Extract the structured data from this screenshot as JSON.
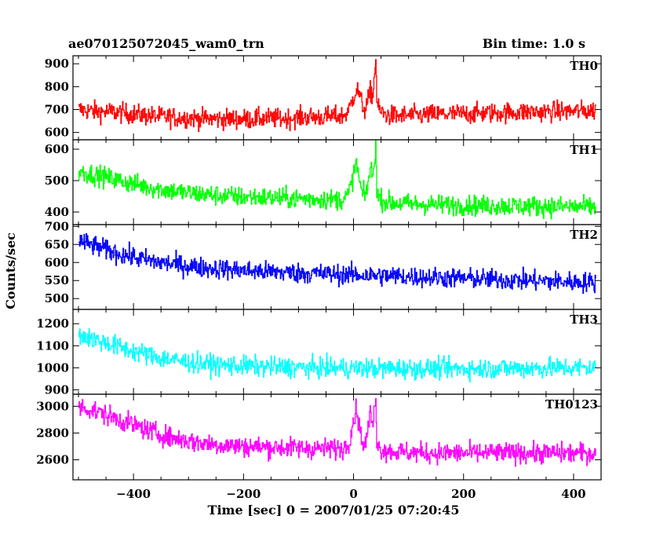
{
  "header": {
    "title": "ae070125072045_wam0_trn",
    "bin_time": "Bin time: 1.0 s"
  },
  "chart_data": {
    "type": "line",
    "xlabel": "Time [sec] 0 = 2007/01/25 07:20:45",
    "ylabel": "Counts/sec",
    "xlim": [
      -510,
      450
    ],
    "x_ticks": [
      -400,
      -200,
      0,
      200,
      400
    ],
    "grid": false,
    "panels": [
      {
        "name": "TH0",
        "color": "#ff0000",
        "ylim": [
          568,
          935
        ],
        "y_ticks": [
          600,
          700,
          800,
          900
        ],
        "x": [
          -500,
          -480,
          -460,
          -440,
          -420,
          -400,
          -380,
          -360,
          -340,
          -320,
          -300,
          -280,
          -260,
          -240,
          -220,
          -200,
          -180,
          -160,
          -140,
          -120,
          -100,
          -80,
          -60,
          -40,
          -20,
          -10,
          0,
          5,
          10,
          15,
          20,
          25,
          30,
          35,
          40,
          42,
          45,
          50,
          60,
          80,
          100,
          120,
          140,
          160,
          180,
          200,
          220,
          240,
          260,
          280,
          300,
          320,
          340,
          360,
          380,
          400,
          420,
          440
        ],
        "values": [
          700,
          695,
          690,
          690,
          685,
          680,
          675,
          670,
          668,
          665,
          665,
          660,
          660,
          658,
          660,
          658,
          660,
          662,
          660,
          662,
          665,
          668,
          668,
          670,
          672,
          690,
          760,
          790,
          770,
          720,
          700,
          730,
          780,
          760,
          935,
          740,
          700,
          690,
          675,
          672,
          675,
          675,
          678,
          680,
          680,
          682,
          682,
          685,
          685,
          688,
          688,
          690,
          690,
          692,
          692,
          693,
          694,
          695
        ]
      },
      {
        "name": "TH1",
        "color": "#00ff00",
        "ylim": [
          360,
          630
        ],
        "y_ticks": [
          400,
          500,
          600
        ],
        "x": [
          -500,
          -480,
          -460,
          -440,
          -420,
          -400,
          -380,
          -360,
          -340,
          -320,
          -300,
          -280,
          -260,
          -240,
          -220,
          -200,
          -180,
          -160,
          -140,
          -120,
          -100,
          -80,
          -60,
          -40,
          -20,
          -10,
          0,
          5,
          10,
          15,
          20,
          25,
          30,
          35,
          40,
          42,
          45,
          50,
          60,
          80,
          100,
          120,
          140,
          160,
          180,
          200,
          220,
          240,
          260,
          280,
          300,
          320,
          340,
          360,
          380,
          400,
          420,
          440
        ],
        "values": [
          530,
          522,
          515,
          505,
          498,
          490,
          482,
          475,
          470,
          465,
          460,
          458,
          455,
          452,
          450,
          448,
          448,
          446,
          445,
          444,
          443,
          442,
          441,
          440,
          440,
          455,
          520,
          560,
          500,
          460,
          450,
          480,
          540,
          510,
          620,
          480,
          445,
          440,
          432,
          428,
          425,
          425,
          424,
          423,
          422,
          422,
          421,
          420,
          420,
          420,
          419,
          419,
          418,
          418,
          417,
          417,
          416,
          416
        ]
      },
      {
        "name": "TH2",
        "color": "#0000ff",
        "ylim": [
          470,
          705
        ],
        "y_ticks": [
          500,
          550,
          600,
          650,
          700
        ],
        "x": [
          -500,
          -480,
          -460,
          -440,
          -420,
          -400,
          -380,
          -360,
          -340,
          -320,
          -300,
          -280,
          -260,
          -240,
          -220,
          -200,
          -180,
          -160,
          -140,
          -120,
          -100,
          -80,
          -60,
          -40,
          -20,
          0,
          20,
          40,
          60,
          80,
          100,
          120,
          140,
          160,
          180,
          200,
          220,
          240,
          260,
          280,
          300,
          320,
          340,
          360,
          380,
          400,
          420,
          440
        ],
        "values": [
          660,
          650,
          640,
          630,
          622,
          615,
          608,
          602,
          598,
          594,
          590,
          587,
          584,
          582,
          580,
          578,
          576,
          575,
          574,
          572,
          571,
          570,
          569,
          568,
          567,
          566,
          565,
          564,
          563,
          562,
          561,
          560,
          559,
          558,
          557,
          556,
          555,
          554,
          553,
          552,
          551,
          550,
          549,
          548,
          547,
          546,
          545,
          545
        ]
      },
      {
        "name": "TH3",
        "color": "#00ffff",
        "ylim": [
          880,
          1265
        ],
        "y_ticks": [
          900,
          1000,
          1100,
          1200
        ],
        "x": [
          -500,
          -480,
          -460,
          -440,
          -420,
          -400,
          -380,
          -360,
          -340,
          -320,
          -300,
          -280,
          -260,
          -240,
          -220,
          -200,
          -180,
          -160,
          -140,
          -120,
          -100,
          -80,
          -60,
          -40,
          -20,
          0,
          20,
          40,
          60,
          80,
          100,
          120,
          140,
          160,
          180,
          200,
          220,
          240,
          260,
          280,
          300,
          320,
          340,
          360,
          380,
          400,
          420,
          440
        ],
        "values": [
          1150,
          1135,
          1120,
          1105,
          1090,
          1075,
          1062,
          1050,
          1040,
          1032,
          1025,
          1020,
          1015,
          1012,
          1010,
          1008,
          1006,
          1004,
          1003,
          1002,
          1001,
          1000,
          1000,
          999,
          999,
          998,
          998,
          997,
          997,
          997,
          996,
          996,
          996,
          996,
          996,
          996,
          997,
          997,
          997,
          998,
          998,
          998,
          999,
          999,
          1000,
          1000,
          1000,
          1001
        ]
      },
      {
        "name": "TH0123",
        "color": "#ff00ff",
        "ylim": [
          2450,
          3090
        ],
        "y_ticks": [
          2600,
          2800,
          3000
        ],
        "x": [
          -500,
          -480,
          -460,
          -440,
          -420,
          -400,
          -380,
          -360,
          -340,
          -320,
          -300,
          -280,
          -260,
          -240,
          -220,
          -200,
          -180,
          -160,
          -140,
          -120,
          -100,
          -80,
          -60,
          -40,
          -20,
          -10,
          0,
          5,
          10,
          15,
          20,
          25,
          30,
          35,
          40,
          42,
          45,
          50,
          60,
          80,
          100,
          120,
          140,
          160,
          180,
          200,
          220,
          240,
          260,
          280,
          300,
          320,
          340,
          360,
          380,
          400,
          420,
          440
        ],
        "values": [
          3000,
          2975,
          2950,
          2920,
          2890,
          2860,
          2830,
          2800,
          2775,
          2755,
          2740,
          2728,
          2718,
          2710,
          2705,
          2700,
          2698,
          2695,
          2692,
          2690,
          2688,
          2686,
          2685,
          2684,
          2683,
          2720,
          2900,
          2980,
          2850,
          2740,
          2700,
          2800,
          2950,
          2850,
          3090,
          2760,
          2690,
          2680,
          2665,
          2658,
          2655,
          2652,
          2650,
          2650,
          2650,
          2650,
          2650,
          2650,
          2650,
          2650,
          2650,
          2650,
          2650,
          2650,
          2650,
          2650,
          2650,
          2650
        ]
      }
    ]
  }
}
